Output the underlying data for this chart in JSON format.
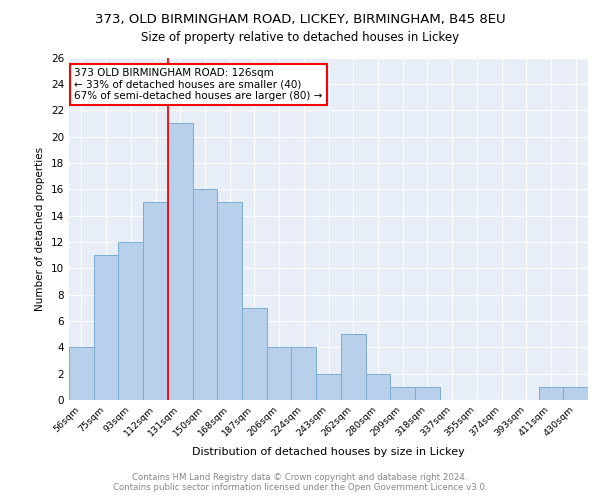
{
  "title": "373, OLD BIRMINGHAM ROAD, LICKEY, BIRMINGHAM, B45 8EU",
  "subtitle": "Size of property relative to detached houses in Lickey",
  "xlabel": "Distribution of detached houses by size in Lickey",
  "ylabel": "Number of detached properties",
  "categories": [
    "56sqm",
    "75sqm",
    "93sqm",
    "112sqm",
    "131sqm",
    "150sqm",
    "168sqm",
    "187sqm",
    "206sqm",
    "224sqm",
    "243sqm",
    "262sqm",
    "280sqm",
    "299sqm",
    "318sqm",
    "337sqm",
    "355sqm",
    "374sqm",
    "393sqm",
    "411sqm",
    "430sqm"
  ],
  "values": [
    4,
    11,
    12,
    15,
    21,
    16,
    15,
    7,
    4,
    4,
    2,
    5,
    2,
    1,
    1,
    0,
    0,
    0,
    0,
    1,
    1
  ],
  "bar_color": "#b8d0ea",
  "bar_edge_color": "#7aadd4",
  "vline_x_index": 4,
  "vline_color": "red",
  "annotation_lines": [
    "373 OLD BIRMINGHAM ROAD: 126sqm",
    "← 33% of detached houses are smaller (40)",
    "67% of semi-detached houses are larger (80) →"
  ],
  "ylim": [
    0,
    26
  ],
  "yticks": [
    0,
    2,
    4,
    6,
    8,
    10,
    12,
    14,
    16,
    18,
    20,
    22,
    24,
    26
  ],
  "background_color": "#e8eef8",
  "grid_color": "white",
  "footer": "Contains HM Land Registry data © Crown copyright and database right 2024.\nContains public sector information licensed under the Open Government Licence v3.0."
}
